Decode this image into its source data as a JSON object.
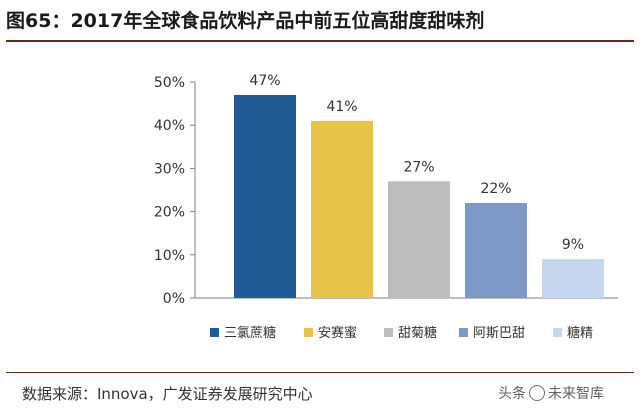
{
  "title": "图65：2017年全球食品饮料产品中前五位高甜度甜味剂",
  "source": "数据来源：Innova，广发证券发展研究中心",
  "watermark": {
    "prefix": "头条",
    "name": "未来智库"
  },
  "colors": {
    "title_rule": "#7a1f1f",
    "series": [
      "#1f5b95",
      "#e8c34a",
      "#bdbdbd",
      "#7c98c7",
      "#c5d6ee"
    ]
  },
  "chart_data": {
    "type": "bar",
    "categories": [
      "三氯蔗糖",
      "安赛蜜",
      "甜菊糖",
      "阿斯巴甜",
      "糖精"
    ],
    "values": [
      47,
      41,
      27,
      22,
      9
    ],
    "data_labels": [
      "47%",
      "41%",
      "27%",
      "22%",
      "9%"
    ],
    "ylim": [
      0,
      50
    ],
    "yticks": [
      0,
      10,
      20,
      30,
      40,
      50
    ],
    "ytick_labels": [
      "0%",
      "10%",
      "20%",
      "30%",
      "40%",
      "50%"
    ],
    "grid": false,
    "legend_position": "bottom",
    "xlabel": "",
    "ylabel": ""
  }
}
